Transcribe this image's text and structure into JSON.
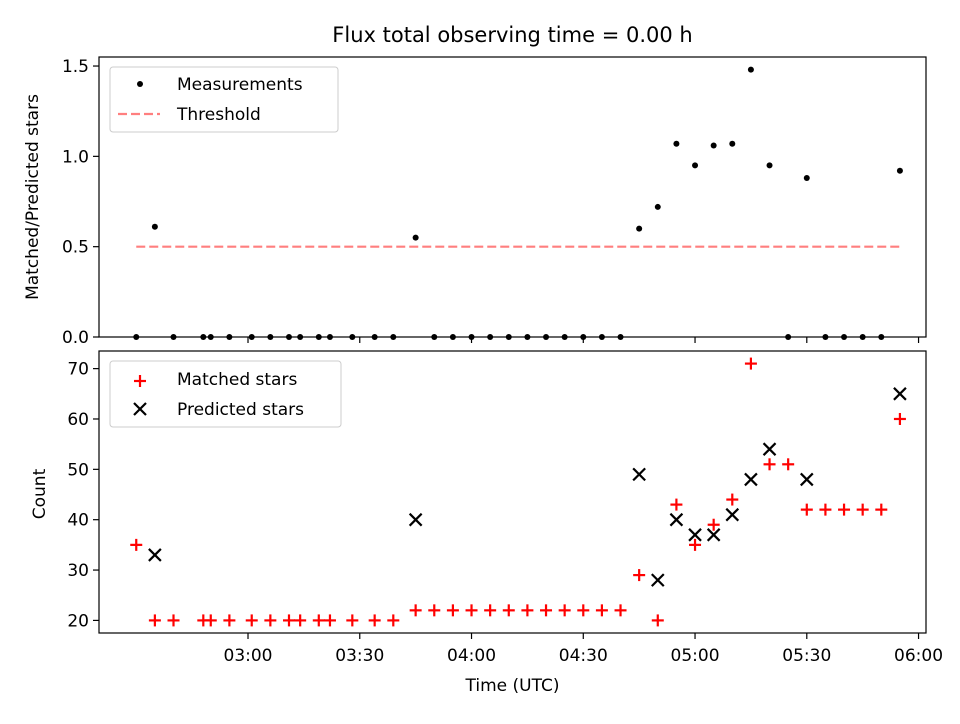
{
  "title": "Flux total observing time = 0.00 h",
  "colors": {
    "measurement": "#000000",
    "threshold": "#ff7f7f",
    "matched": "#ff0000",
    "predicted": "#000000",
    "axes": "#000000",
    "background": "#ffffff"
  },
  "chart_data": [
    {
      "type": "scatter",
      "panel": "top",
      "title": "Flux total observing time = 0.00 h",
      "xlabel": "",
      "ylabel": "Matched/Predicted stars",
      "xlim": [
        "02:20",
        "06:02"
      ],
      "ylim": [
        0,
        1.55
      ],
      "yticks": [
        0.0,
        0.5,
        1.0,
        1.5
      ],
      "ytick_labels": [
        "0.0",
        "0.5",
        "1.0",
        "1.5"
      ],
      "grid": false,
      "legend_position": "upper left",
      "legend": [
        "Measurements",
        "Threshold"
      ],
      "series": [
        {
          "name": "Measurements",
          "marker": "dot",
          "x": [
            "02:30",
            "02:35",
            "02:40",
            "02:48",
            "02:50",
            "02:55",
            "03:01",
            "03:06",
            "03:11",
            "03:14",
            "03:19",
            "03:22",
            "03:28",
            "03:34",
            "03:39",
            "03:45",
            "03:50",
            "03:55",
            "04:00",
            "04:05",
            "04:10",
            "04:15",
            "04:20",
            "04:25",
            "04:30",
            "04:35",
            "04:40",
            "04:45",
            "04:50",
            "04:55",
            "05:00",
            "05:05",
            "05:10",
            "05:15",
            "05:20",
            "05:25",
            "05:30",
            "05:35",
            "05:40",
            "05:45",
            "05:50",
            "05:55"
          ],
          "y": [
            0,
            0.61,
            0,
            0,
            0,
            0,
            0,
            0,
            0,
            0,
            0,
            0,
            0,
            0,
            0,
            0.55,
            0,
            0,
            0,
            0,
            0,
            0,
            0,
            0,
            0,
            0,
            0,
            0.6,
            0.72,
            1.07,
            0.95,
            1.06,
            1.07,
            1.48,
            0.95,
            0,
            0.88,
            0,
            0,
            0,
            0,
            0.92
          ]
        },
        {
          "name": "Threshold",
          "type": "line",
          "style": "dashed",
          "x": [
            "02:30",
            "05:55"
          ],
          "y": [
            0.5,
            0.5
          ]
        }
      ]
    },
    {
      "type": "scatter",
      "panel": "bottom",
      "xlabel": "Time (UTC)",
      "ylabel": "Count",
      "xlim": [
        "02:20",
        "06:02"
      ],
      "ylim": [
        17.5,
        73.5
      ],
      "xticks": [
        "03:00",
        "03:30",
        "04:00",
        "04:30",
        "05:00",
        "05:30",
        "06:00"
      ],
      "yticks": [
        20,
        30,
        40,
        50,
        60,
        70
      ],
      "ytick_labels": [
        "20",
        "30",
        "40",
        "50",
        "60",
        "70"
      ],
      "grid": false,
      "legend_position": "upper left",
      "legend": [
        "Matched stars",
        "Predicted stars"
      ],
      "series": [
        {
          "name": "Matched stars",
          "marker": "plus",
          "x": [
            "02:30",
            "02:35",
            "02:40",
            "02:48",
            "02:50",
            "02:55",
            "03:01",
            "03:06",
            "03:11",
            "03:14",
            "03:19",
            "03:22",
            "03:28",
            "03:34",
            "03:39",
            "03:45",
            "03:50",
            "03:55",
            "04:00",
            "04:05",
            "04:10",
            "04:15",
            "04:20",
            "04:25",
            "04:30",
            "04:35",
            "04:40",
            "04:45",
            "04:50",
            "04:55",
            "05:00",
            "05:05",
            "05:10",
            "05:15",
            "05:20",
            "05:25",
            "05:30",
            "05:35",
            "05:40",
            "05:45",
            "05:50",
            "05:55"
          ],
          "y": [
            35,
            20,
            20,
            20,
            20,
            20,
            20,
            20,
            20,
            20,
            20,
            20,
            20,
            20,
            20,
            22,
            22,
            22,
            22,
            22,
            22,
            22,
            22,
            22,
            22,
            22,
            22,
            29,
            20,
            43,
            35,
            39,
            44,
            71,
            51,
            51,
            42,
            42,
            42,
            42,
            42,
            60
          ]
        },
        {
          "name": "Predicted stars",
          "marker": "x",
          "x": [
            "02:35",
            "03:45",
            "04:45",
            "04:50",
            "04:55",
            "05:00",
            "05:05",
            "05:10",
            "05:15",
            "05:20",
            "05:30",
            "05:55"
          ],
          "y": [
            33,
            40,
            49,
            28,
            40,
            37,
            37,
            41,
            48,
            54,
            48,
            65
          ]
        }
      ]
    }
  ]
}
